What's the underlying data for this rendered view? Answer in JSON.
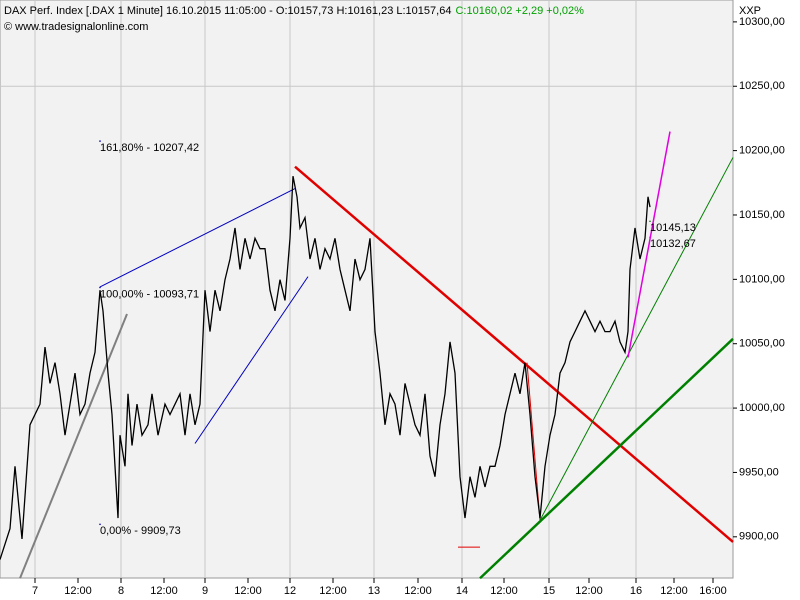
{
  "chart_data": {
    "type": "line",
    "title": "DAX Perf. Index [.DAX  1 Minute] 16.10.2015 11:05:00 - O:10157,73 H:10161,23 L:10157,64",
    "subtitle": "C:10160,02 +2,29 +0,02%",
    "subtitle_color": "#00a000",
    "source": "© www.tradesignalonline.com",
    "axis_label": "XXP",
    "xlim": [
      0,
      733
    ],
    "ylim": [
      9868,
      10317
    ],
    "xticks": [
      {
        "value": 35,
        "label": "7"
      },
      {
        "value": 78,
        "label": "12:00"
      },
      {
        "value": 121,
        "label": "8"
      },
      {
        "value": 164,
        "label": "12:00"
      },
      {
        "value": 205,
        "label": "9"
      },
      {
        "value": 248,
        "label": "12:00"
      },
      {
        "value": 290,
        "label": "12"
      },
      {
        "value": 333,
        "label": "12:00"
      },
      {
        "value": 374,
        "label": "13"
      },
      {
        "value": 418,
        "label": "12:00"
      },
      {
        "value": 462,
        "label": "14"
      },
      {
        "value": 504,
        "label": "12:00"
      },
      {
        "value": 549,
        "label": "15"
      },
      {
        "value": 589,
        "label": "12:00"
      },
      {
        "value": 636,
        "label": "16"
      },
      {
        "value": 674,
        "label": "12:00"
      },
      {
        "value": 713,
        "label": "16:00"
      }
    ],
    "yticks": [
      {
        "value": 9900,
        "label": "9900,00"
      },
      {
        "value": 9950,
        "label": "9950,00"
      },
      {
        "value": 10000,
        "label": "10000,00"
      },
      {
        "value": 10050,
        "label": "10050,00"
      },
      {
        "value": 10100,
        "label": "10100,00"
      },
      {
        "value": 10150,
        "label": "10150,00"
      },
      {
        "value": 10200,
        "label": "10200,00"
      },
      {
        "value": 10250,
        "label": "10250,00"
      },
      {
        "value": 10300,
        "label": "10300,00"
      }
    ],
    "ygrid": [
      10000,
      10250
    ],
    "series": [
      {
        "color": "#000000",
        "x": [
          0,
          10,
          15,
          22,
          30,
          40,
          45,
          50,
          55,
          60,
          65,
          70,
          75,
          80,
          85,
          90,
          95,
          100,
          103,
          108,
          112,
          115,
          118,
          120,
          125,
          128,
          132,
          137,
          142,
          148,
          152,
          158,
          165,
          170,
          180,
          185,
          190,
          195,
          200,
          205,
          210,
          215,
          220,
          225,
          230,
          235,
          240,
          245,
          250,
          255,
          260,
          265,
          270,
          275,
          280,
          285,
          290,
          293,
          297,
          300,
          305,
          310,
          315,
          320,
          325,
          330,
          335,
          340,
          345,
          350,
          355,
          360,
          365,
          370,
          375,
          380,
          385,
          390,
          395,
          400,
          405,
          410,
          415,
          420,
          425,
          430,
          435,
          440,
          445,
          450,
          455,
          460,
          465,
          470,
          475,
          480,
          485,
          490,
          495,
          500,
          505,
          510,
          515,
          520,
          525,
          528,
          530,
          535,
          540,
          545,
          550,
          555,
          560,
          565,
          570,
          575,
          580,
          585,
          590,
          595,
          600,
          605,
          610,
          615,
          620,
          625,
          628,
          630,
          635,
          640,
          645,
          648,
          650
        ],
        "values": [
          9882.3,
          9906.4,
          9954.8,
          9898.4,
          9987.0,
          10003.1,
          10047.4,
          10019.2,
          10035.3,
          10011.1,
          9978.9,
          10003.1,
          10027.2,
          9995.0,
          10003.1,
          10027.2,
          10043.3,
          10091.6,
          10075.5,
          10027.2,
          9995.0,
          9954.8,
          9914.5,
          9978.9,
          9954.8,
          10011.1,
          9970.9,
          10003.1,
          9978.9,
          9987.0,
          10011.1,
          9978.9,
          10003.1,
          9995.0,
          10011.1,
          9978.9,
          10011.1,
          9987.0,
          10003.1,
          10091.6,
          10059.4,
          10091.6,
          10075.5,
          10099.7,
          10115.8,
          10139.9,
          10107.7,
          10131.9,
          10115.8,
          10131.9,
          10123.8,
          10123.8,
          10091.6,
          10075.5,
          10099.7,
          10083.6,
          10131.9,
          10180.2,
          10164.1,
          10139.9,
          10148.0,
          10115.8,
          10131.9,
          10107.7,
          10123.8,
          10115.8,
          10131.9,
          10107.7,
          10091.6,
          10075.5,
          10115.8,
          10099.7,
          10107.7,
          10131.9,
          10059.4,
          10027.2,
          9987.0,
          10011.1,
          10003.1,
          9978.9,
          10019.2,
          10003.1,
          9987.0,
          9978.9,
          10011.1,
          9962.8,
          9946.7,
          9987.0,
          10011.1,
          10051.4,
          10027.2,
          9946.7,
          9914.5,
          9946.7,
          9930.6,
          9954.8,
          9938.7,
          9954.8,
          9954.8,
          9970.9,
          9995.0,
          10011.1,
          10027.2,
          10011.1,
          10035.3,
          10011.1,
          9995.0,
          9946.7,
          9914.5,
          9954.8,
          9978.9,
          9995.0,
          10027.2,
          10035.3,
          10051.4,
          10059.4,
          10067.5,
          10075.5,
          10067.5,
          10059.4,
          10067.5,
          10059.4,
          10059.4,
          10067.5,
          10051.4,
          10043.3,
          10059.4,
          10107.7,
          10139.9,
          10115.8,
          10131.9,
          10164.1,
          10156.1
        ]
      }
    ],
    "lines": [
      {
        "color": "#808080",
        "width": 2,
        "x": [
          20,
          127
        ],
        "y": [
          9867.8,
          10073.1
        ]
      },
      {
        "color": "#0000c0",
        "width": 1,
        "x": [
          100,
          295
        ],
        "y": [
          10094.1,
          10170.5
        ]
      },
      {
        "color": "#0000c0",
        "width": 1,
        "x": [
          195,
          308
        ],
        "y": [
          9972.5,
          10102.1
        ]
      },
      {
        "color": "#e00000",
        "width": 2.5,
        "x": [
          295,
          733
        ],
        "y": [
          10187.5,
          9896.0
        ]
      },
      {
        "color": "#e00000",
        "width": 1,
        "x": [
          527,
          540
        ],
        "y": [
          10035.3,
          9912.9
        ]
      },
      {
        "color": "#e00000",
        "width": 1,
        "x": [
          458,
          480
        ],
        "y": [
          9892.0,
          9892.0
        ]
      },
      {
        "color": "#008000",
        "width": 1,
        "x": [
          540,
          733
        ],
        "y": [
          9912.9,
          10194.7
        ]
      },
      {
        "color": "#008000",
        "width": 2.5,
        "x": [
          480,
          733
        ],
        "y": [
          9867.8,
          10053.8
        ]
      },
      {
        "color": "#e000e0",
        "width": 1.5,
        "x": [
          628,
          670
        ],
        "y": [
          10039.3,
          10214.8
        ]
      }
    ],
    "annotations": [
      {
        "text": "161,80% - 10207,42",
        "x": 100,
        "y": 10207.42,
        "color": "#0000c0"
      },
      {
        "text": "100,00% - 10093,71",
        "x": 100,
        "y": 10093.71,
        "color": "#0000c0"
      },
      {
        "text": "0,00% - 9909,73",
        "x": 100,
        "y": 9909.73,
        "color": "#0000c0"
      },
      {
        "text": "10145,13",
        "x": 650,
        "y": 10145.13,
        "color": "#008000"
      },
      {
        "text": "10132,67",
        "x": 650,
        "y": 10132.67,
        "color": "#e000e0"
      }
    ]
  }
}
